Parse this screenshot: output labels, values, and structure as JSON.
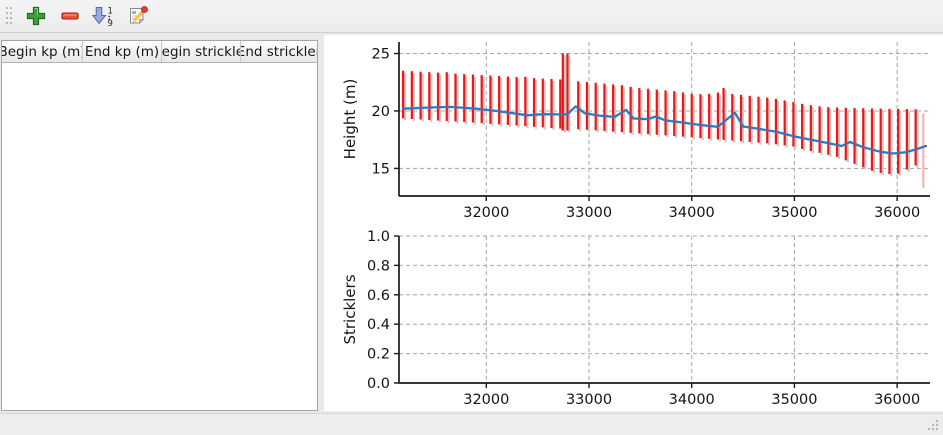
{
  "toolbar": {
    "buttons": [
      {
        "id": "add",
        "icon": "plus-icon",
        "color": "#41a041"
      },
      {
        "id": "remove",
        "icon": "minus-icon",
        "color": "#ee4f38"
      },
      {
        "id": "sort-numeric",
        "icon": "sort-numeric-down-icon",
        "color": "#98aadb"
      },
      {
        "id": "edit",
        "icon": "edit-note-icon",
        "color": "#f2c84b"
      }
    ]
  },
  "table": {
    "columns": [
      "Begin kp (m)",
      "End kp (m)",
      "Begin strickler",
      "End strickler"
    ],
    "rows": []
  },
  "colors": {
    "range_bar": "#ec1616",
    "height_line": "#3d74b8",
    "faint_bar": "#f4b6b6",
    "bar_shadow": "#c8c8c8",
    "grid": "#a6a6a6"
  },
  "chart_data": [
    {
      "type": "line",
      "title": "",
      "xlabel": "",
      "ylabel": "Height (m)",
      "xlim": [
        31150,
        36320
      ],
      "ylim": [
        12.6,
        26.0
      ],
      "xticks": [
        32000,
        33000,
        34000,
        35000,
        36000
      ],
      "xtick_labels": [
        "32000",
        "33000",
        "34000",
        "35000",
        "36000"
      ],
      "yticks": [
        15,
        20,
        25
      ],
      "ytick_labels": [
        "15",
        "20",
        "25"
      ],
      "grid": true,
      "legend": null,
      "series": [
        {
          "name": "height-range-bars",
          "type": "errorbar",
          "color": "#ec1616",
          "points": [
            [
              31190,
              19.35,
              23.5
            ],
            [
              31275,
              19.3,
              23.46
            ],
            [
              31360,
              19.26,
              23.42
            ],
            [
              31445,
              19.21,
              23.38
            ],
            [
              31530,
              19.17,
              23.33
            ],
            [
              31615,
              19.12,
              23.37
            ],
            [
              31700,
              19.08,
              23.25
            ],
            [
              31785,
              19.03,
              23.21
            ],
            [
              31870,
              18.99,
              23.17
            ],
            [
              31955,
              18.94,
              23.12
            ],
            [
              32040,
              18.88,
              23.08
            ],
            [
              32125,
              18.83,
              23.04
            ],
            [
              32210,
              18.78,
              22.99
            ],
            [
              32295,
              18.73,
              22.95
            ],
            [
              32380,
              18.68,
              22.98
            ],
            [
              32465,
              18.62,
              22.86
            ],
            [
              32550,
              18.57,
              22.82
            ],
            [
              32635,
              18.52,
              22.78
            ],
            [
              32720,
              18.47,
              22.74
            ],
            [
              32745,
              18.3,
              25.0
            ],
            [
              32790,
              18.3,
              25.0
            ],
            [
              32895,
              18.41,
              22.58
            ],
            [
              32980,
              18.36,
              22.52
            ],
            [
              33065,
              18.31,
              22.45
            ],
            [
              33150,
              18.26,
              22.38
            ],
            [
              33235,
              18.2,
              22.31
            ],
            [
              33320,
              18.15,
              22.24
            ],
            [
              33405,
              18.09,
              22.1
            ],
            [
              33490,
              18.04,
              22.0
            ],
            [
              33575,
              17.98,
              21.93
            ],
            [
              33660,
              17.93,
              21.86
            ],
            [
              33745,
              17.87,
              21.79
            ],
            [
              33830,
              17.82,
              21.72
            ],
            [
              33915,
              17.76,
              21.61
            ],
            [
              34000,
              17.7,
              21.5
            ],
            [
              34085,
              17.64,
              21.46
            ],
            [
              34170,
              17.58,
              21.5
            ],
            [
              34255,
              17.52,
              21.6
            ],
            [
              34310,
              17.48,
              22.0
            ],
            [
              34395,
              17.42,
              21.48
            ],
            [
              34480,
              17.36,
              21.4
            ],
            [
              34565,
              17.3,
              21.32
            ],
            [
              34650,
              17.24,
              21.24
            ],
            [
              34735,
              17.18,
              21.16
            ],
            [
              34820,
              17.1,
              21.05
            ],
            [
              34905,
              17.0,
              20.92
            ],
            [
              34990,
              16.9,
              20.78
            ],
            [
              35075,
              16.7,
              20.62
            ],
            [
              35160,
              16.5,
              20.5
            ],
            [
              35245,
              16.35,
              20.4
            ],
            [
              35330,
              16.18,
              20.33
            ],
            [
              35415,
              16.0,
              20.3
            ],
            [
              35500,
              15.7,
              20.28
            ],
            [
              35585,
              15.4,
              20.26
            ],
            [
              35670,
              15.1,
              20.24
            ],
            [
              35755,
              14.8,
              20.22
            ],
            [
              35840,
              14.6,
              20.2
            ],
            [
              35925,
              14.5,
              20.18
            ],
            [
              36010,
              14.55,
              20.17
            ],
            [
              36095,
              14.9,
              20.16
            ],
            [
              36180,
              15.25,
              20.15
            ]
          ]
        },
        {
          "name": "end-faint-bar",
          "type": "errorbar",
          "color": "#f4b6b6",
          "shadow": false,
          "points": [
            [
              36255,
              13.3,
              19.8
            ]
          ]
        },
        {
          "name": "height-line",
          "type": "line",
          "color": "#3d74b8",
          "points": [
            [
              31190,
              20.2
            ],
            [
              31450,
              20.3
            ],
            [
              31650,
              20.35
            ],
            [
              31900,
              20.2
            ],
            [
              32100,
              20.0
            ],
            [
              32300,
              19.75
            ],
            [
              32400,
              19.62
            ],
            [
              32550,
              19.72
            ],
            [
              32720,
              19.7
            ],
            [
              32790,
              19.72
            ],
            [
              32870,
              20.4
            ],
            [
              32960,
              19.8
            ],
            [
              33100,
              19.6
            ],
            [
              33250,
              19.48
            ],
            [
              33360,
              20.1
            ],
            [
              33430,
              19.35
            ],
            [
              33570,
              19.28
            ],
            [
              33650,
              19.52
            ],
            [
              33745,
              19.18
            ],
            [
              33900,
              19.0
            ],
            [
              34085,
              18.78
            ],
            [
              34255,
              18.62
            ],
            [
              34420,
              19.85
            ],
            [
              34500,
              18.65
            ],
            [
              34650,
              18.45
            ],
            [
              34820,
              18.2
            ],
            [
              34990,
              17.8
            ],
            [
              35160,
              17.5
            ],
            [
              35330,
              17.2
            ],
            [
              35460,
              16.95
            ],
            [
              35540,
              17.3
            ],
            [
              35670,
              16.85
            ],
            [
              35840,
              16.45
            ],
            [
              35960,
              16.3
            ],
            [
              36080,
              16.4
            ],
            [
              36180,
              16.65
            ],
            [
              36280,
              16.95
            ]
          ]
        }
      ]
    },
    {
      "type": "line",
      "title": "",
      "xlabel": "",
      "ylabel": "Stricklers",
      "xlim": [
        31150,
        36320
      ],
      "ylim": [
        0.0,
        1.0
      ],
      "xticks": [
        32000,
        33000,
        34000,
        35000,
        36000
      ],
      "xtick_labels": [
        "32000",
        "33000",
        "34000",
        "35000",
        "36000"
      ],
      "yticks": [
        0.0,
        0.2,
        0.4,
        0.6,
        0.8,
        1.0
      ],
      "ytick_labels": [
        "0.0",
        "0.2",
        "0.4",
        "0.6",
        "0.8",
        "1.0"
      ],
      "grid": true,
      "legend": null,
      "series": []
    }
  ]
}
